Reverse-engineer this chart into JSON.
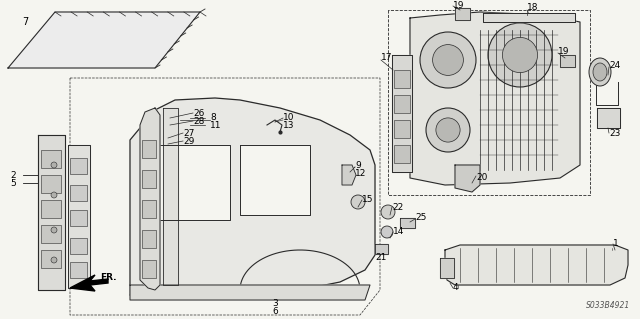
{
  "bg_color": "#f5f5f0",
  "line_color": "#2a2a2a",
  "text_color": "#000000",
  "diagram_code": "S033B4921",
  "font_size": 6.5,
  "fig_w": 6.4,
  "fig_h": 3.19,
  "dpi": 100
}
